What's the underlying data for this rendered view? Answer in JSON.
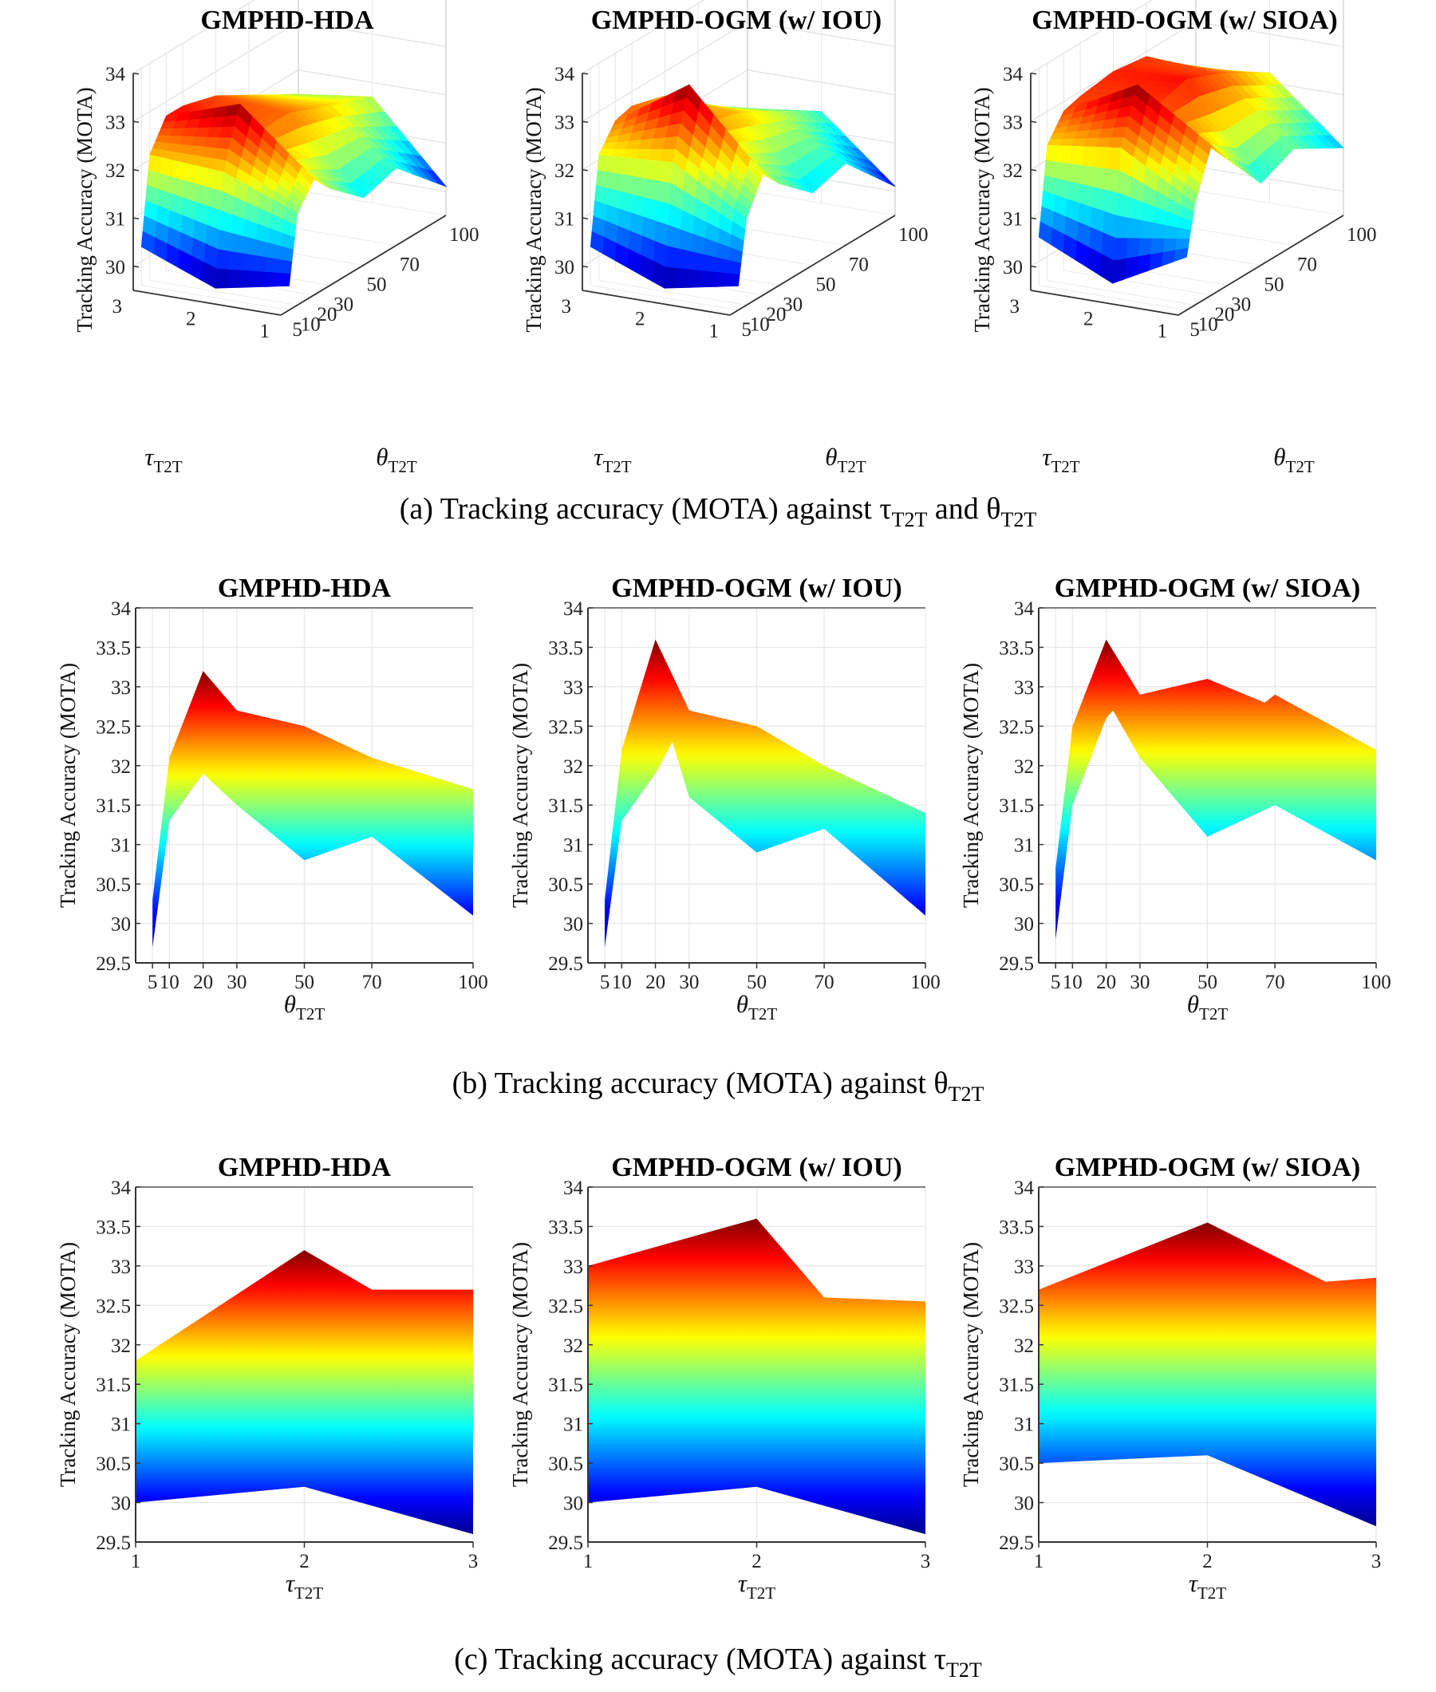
{
  "figure": {
    "captions": {
      "a": {
        "text": "(a) Tracking accuracy (MOTA) against τ",
        "sub1": "T2T",
        "mid": " and θ",
        "sub2": "T2T"
      },
      "b": {
        "text": "(b) Tracking accuracy (MOTA) against θ",
        "sub1": "T2T"
      },
      "c": {
        "text": "(c) Tracking accuracy (MOTA) against τ",
        "sub1": "T2T"
      }
    },
    "colormap": [
      "#00008f",
      "#0000ff",
      "#0080ff",
      "#00ffff",
      "#80ff80",
      "#ffff00",
      "#ff8000",
      "#ff0000",
      "#800000"
    ]
  },
  "chart_data": [
    {
      "id": "a1",
      "row": "a",
      "type": "surface",
      "title": "GMPHD-HDA",
      "zlabel": "Tracking Accuracy (MOTA)",
      "zlim": [
        29.5,
        34
      ],
      "zticks": [
        30,
        31,
        32,
        33,
        34
      ],
      "xlabel": "τ",
      "xlabel_sub": "T2T",
      "xticks": [
        1,
        2,
        3
      ],
      "ylabel": "θ",
      "ylabel_sub": "T2T",
      "yticks": [
        5,
        10,
        20,
        30,
        50,
        70,
        100
      ],
      "tau": [
        1,
        2,
        3
      ],
      "theta": [
        5,
        10,
        20,
        30,
        50,
        70,
        100
      ],
      "values": [
        [
          30.0,
          31.4,
          31.9,
          31.5,
          30.9,
          31.1,
          30.1
        ],
        [
          29.7,
          32.0,
          33.2,
          32.4,
          32.4,
          32.1,
          31.7
        ],
        [
          30.3,
          32.1,
          32.7,
          32.7,
          32.5,
          32.1,
          31.5
        ]
      ]
    },
    {
      "id": "a2",
      "row": "a",
      "type": "surface",
      "title": "GMPHD-OGM (w/ IOU)",
      "zlabel": "Tracking Accuracy (MOTA)",
      "zlim": [
        29.5,
        34
      ],
      "zticks": [
        30,
        31,
        32,
        33,
        34
      ],
      "xlabel": "τ",
      "xlabel_sub": "T2T",
      "xticks": [
        1,
        2,
        3
      ],
      "ylabel": "θ",
      "ylabel_sub": "T2T",
      "yticks": [
        5,
        10,
        20,
        30,
        50,
        70,
        100
      ],
      "tau": [
        1,
        2,
        3
      ],
      "theta": [
        5,
        10,
        20,
        30,
        50,
        70,
        100
      ],
      "values": [
        [
          30.0,
          31.3,
          32.0,
          31.6,
          31.0,
          31.2,
          30.1
        ],
        [
          29.7,
          32.2,
          33.6,
          32.6,
          32.4,
          32.0,
          31.4
        ],
        [
          30.3,
          32.1,
          32.6,
          32.7,
          32.5,
          31.9,
          31.2
        ]
      ]
    },
    {
      "id": "a3",
      "row": "a",
      "type": "surface",
      "title": "GMPHD-OGM (w/ SIOA)",
      "zlabel": "Tracking Accuracy (MOTA)",
      "zlim": [
        29.5,
        34
      ],
      "zticks": [
        30,
        31,
        32,
        33,
        34
      ],
      "xlabel": "τ",
      "xlabel_sub": "T2T",
      "xticks": [
        1,
        2,
        3
      ],
      "ylabel": "θ",
      "ylabel_sub": "T2T",
      "yticks": [
        5,
        10,
        20,
        30,
        50,
        70,
        100
      ],
      "tau": [
        1,
        2,
        3
      ],
      "theta": [
        5,
        10,
        20,
        30,
        50,
        70,
        100
      ],
      "values": [
        [
          30.6,
          31.6,
          32.6,
          32.1,
          31.2,
          31.5,
          30.9
        ],
        [
          29.8,
          32.5,
          33.6,
          32.9,
          33.1,
          32.8,
          32.2
        ],
        [
          30.5,
          32.3,
          32.8,
          32.9,
          33.0,
          32.9,
          32.0
        ]
      ]
    },
    {
      "id": "b1",
      "row": "b",
      "type": "area",
      "title": "GMPHD-HDA",
      "ylabel": "Tracking Accuracy (MOTA)",
      "ylim": [
        29.5,
        34
      ],
      "yticks": [
        29.5,
        30,
        30.5,
        31,
        31.5,
        32,
        32.5,
        33,
        33.5,
        34
      ],
      "xlabel": "θ",
      "xlabel_sub": "T2T",
      "xlim": [
        0,
        100
      ],
      "xticks": [
        5,
        10,
        20,
        30,
        50,
        70,
        100
      ],
      "upper": {
        "x": [
          5,
          10,
          20,
          30,
          50,
          70,
          100
        ],
        "y": [
          30.3,
          32.1,
          33.2,
          32.7,
          32.5,
          32.1,
          31.7
        ]
      },
      "lower": {
        "x": [
          5,
          10,
          20,
          30,
          50,
          70,
          100
        ],
        "y": [
          29.7,
          31.3,
          31.9,
          31.5,
          30.8,
          31.1,
          30.1
        ]
      }
    },
    {
      "id": "b2",
      "row": "b",
      "type": "area",
      "title": "GMPHD-OGM (w/ IOU)",
      "ylabel": "Tracking Accuracy (MOTA)",
      "ylim": [
        29.5,
        34
      ],
      "yticks": [
        29.5,
        30,
        30.5,
        31,
        31.5,
        32,
        32.5,
        33,
        33.5,
        34
      ],
      "xlabel": "θ",
      "xlabel_sub": "T2T",
      "xlim": [
        0,
        100
      ],
      "xticks": [
        5,
        10,
        20,
        30,
        50,
        70,
        100
      ],
      "upper": {
        "x": [
          5,
          10,
          20,
          30,
          50,
          70,
          100
        ],
        "y": [
          30.3,
          32.2,
          33.6,
          32.7,
          32.5,
          32.0,
          31.4
        ]
      },
      "lower": {
        "x": [
          5,
          10,
          20,
          25,
          30,
          50,
          70,
          100
        ],
        "y": [
          29.7,
          31.3,
          31.9,
          32.3,
          31.6,
          30.9,
          31.2,
          30.1
        ]
      }
    },
    {
      "id": "b3",
      "row": "b",
      "type": "area",
      "title": "GMPHD-OGM (w/ SIOA)",
      "ylabel": "Tracking Accuracy (MOTA)",
      "ylim": [
        29.5,
        34
      ],
      "yticks": [
        29.5,
        30,
        30.5,
        31,
        31.5,
        32,
        32.5,
        33,
        33.5,
        34
      ],
      "xlabel": "θ",
      "xlabel_sub": "T2T",
      "xlim": [
        0,
        100
      ],
      "xticks": [
        5,
        10,
        20,
        30,
        50,
        70,
        100
      ],
      "upper": {
        "x": [
          5,
          10,
          20,
          30,
          50,
          67,
          70,
          100
        ],
        "y": [
          30.7,
          32.5,
          33.6,
          32.9,
          33.1,
          32.8,
          32.9,
          32.2
        ]
      },
      "lower": {
        "x": [
          5,
          10,
          20,
          22,
          30,
          50,
          70,
          100
        ],
        "y": [
          29.8,
          31.5,
          32.6,
          32.7,
          32.1,
          31.1,
          31.5,
          30.8
        ]
      }
    },
    {
      "id": "c1",
      "row": "c",
      "type": "area",
      "title": "GMPHD-HDA",
      "ylabel": "Tracking Accuracy (MOTA)",
      "ylim": [
        29.5,
        34
      ],
      "yticks": [
        29.5,
        30,
        30.5,
        31,
        31.5,
        32,
        32.5,
        33,
        33.5,
        34
      ],
      "xlabel": "τ",
      "xlabel_sub": "T2T",
      "xlim": [
        1,
        3
      ],
      "xticks": [
        1,
        2,
        3
      ],
      "upper": {
        "x": [
          1,
          2,
          2.4,
          3
        ],
        "y": [
          31.8,
          33.2,
          32.7,
          32.7
        ]
      },
      "lower": {
        "x": [
          1,
          2,
          3
        ],
        "y": [
          30.0,
          30.2,
          29.6
        ]
      }
    },
    {
      "id": "c2",
      "row": "c",
      "type": "area",
      "title": "GMPHD-OGM (w/ IOU)",
      "ylabel": "Tracking Accuracy (MOTA)",
      "ylim": [
        29.5,
        34
      ],
      "yticks": [
        29.5,
        30,
        30.5,
        31,
        31.5,
        32,
        32.5,
        33,
        33.5,
        34
      ],
      "xlabel": "τ",
      "xlabel_sub": "T2T",
      "xlim": [
        1,
        3
      ],
      "xticks": [
        1,
        2,
        3
      ],
      "upper": {
        "x": [
          1,
          2,
          2.4,
          3
        ],
        "y": [
          33.0,
          33.6,
          32.6,
          32.55
        ]
      },
      "lower": {
        "x": [
          1,
          2,
          3
        ],
        "y": [
          30.0,
          30.2,
          29.6
        ]
      }
    },
    {
      "id": "c3",
      "row": "c",
      "type": "area",
      "title": "GMPHD-OGM (w/ SIOA)",
      "ylabel": "Tracking Accuracy (MOTA)",
      "ylim": [
        29.5,
        34
      ],
      "yticks": [
        29.5,
        30,
        30.5,
        31,
        31.5,
        32,
        32.5,
        33,
        33.5,
        34
      ],
      "xlabel": "τ",
      "xlabel_sub": "T2T",
      "xlim": [
        1,
        3
      ],
      "xticks": [
        1,
        2,
        3
      ],
      "upper": {
        "x": [
          1,
          2,
          2.7,
          3
        ],
        "y": [
          32.7,
          33.55,
          32.8,
          32.85
        ]
      },
      "lower": {
        "x": [
          1,
          2,
          3
        ],
        "y": [
          30.5,
          30.6,
          29.7
        ]
      }
    }
  ]
}
